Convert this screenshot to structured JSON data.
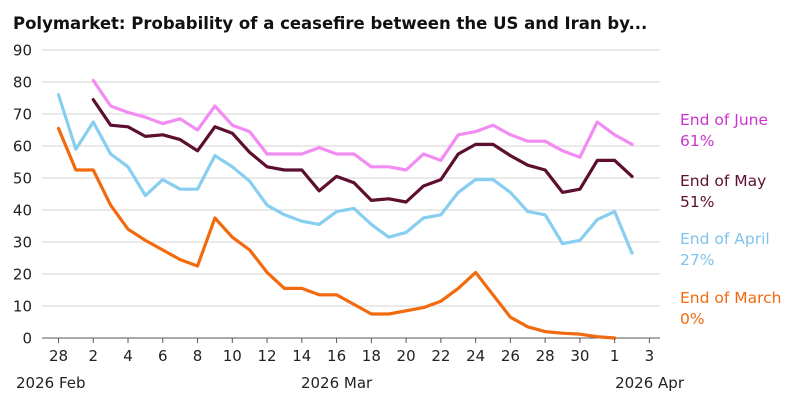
{
  "chart_data": {
    "type": "line",
    "title": "Polymarket: Probability of a ceasefire between the US and Iran by...",
    "xlabel": "",
    "ylabel": "",
    "ylim": [
      0,
      90
    ],
    "y_ticks": [
      0,
      10,
      20,
      30,
      40,
      50,
      60,
      70,
      80,
      90
    ],
    "x_ticks": [
      {
        "date": "2026-02-28",
        "label": "28"
      },
      {
        "date": "2026-03-02",
        "label": "2"
      },
      {
        "date": "2026-03-04",
        "label": "4"
      },
      {
        "date": "2026-03-06",
        "label": "6"
      },
      {
        "date": "2026-03-08",
        "label": "8"
      },
      {
        "date": "2026-03-10",
        "label": "10"
      },
      {
        "date": "2026-03-12",
        "label": "12"
      },
      {
        "date": "2026-03-14",
        "label": "14"
      },
      {
        "date": "2026-03-16",
        "label": "16"
      },
      {
        "date": "2026-03-18",
        "label": "18"
      },
      {
        "date": "2026-03-20",
        "label": "20"
      },
      {
        "date": "2026-03-22",
        "label": "22"
      },
      {
        "date": "2026-03-24",
        "label": "24"
      },
      {
        "date": "2026-03-26",
        "label": "26"
      },
      {
        "date": "2026-03-28",
        "label": "28"
      },
      {
        "date": "2026-03-30",
        "label": "30"
      },
      {
        "date": "2026-04-01",
        "label": "1"
      },
      {
        "date": "2026-04-03",
        "label": "3"
      }
    ],
    "period_labels": [
      {
        "date": "2026-02-28",
        "label": "2026 Feb"
      },
      {
        "date": "2026-03-16",
        "label": "2026 Mar"
      },
      {
        "date": "2026-04-01",
        "label": "2026 Apr"
      }
    ],
    "grid": "horizontal",
    "legend_position": "right",
    "series": [
      {
        "name": "End of June",
        "end_label": "61%",
        "color": "#f28cf2",
        "label_color": "#cc33cc",
        "x": [
          "2026-03-02",
          "2026-03-03",
          "2026-03-04",
          "2026-03-05",
          "2026-03-06",
          "2026-03-07",
          "2026-03-08",
          "2026-03-09",
          "2026-03-10",
          "2026-03-11",
          "2026-03-12",
          "2026-03-13",
          "2026-03-14",
          "2026-03-15",
          "2026-03-16",
          "2026-03-17",
          "2026-03-18",
          "2026-03-19",
          "2026-03-20",
          "2026-03-21",
          "2026-03-22",
          "2026-03-23",
          "2026-03-24",
          "2026-03-25",
          "2026-03-26",
          "2026-03-27",
          "2026-03-28",
          "2026-03-29",
          "2026-03-30",
          "2026-03-31",
          "2026-04-01",
          "2026-04-02"
        ],
        "y": [
          80.5,
          72.5,
          70.5,
          69,
          67,
          68.5,
          65,
          72.5,
          66.5,
          64.5,
          57.5,
          57.5,
          57.5,
          59.5,
          57.5,
          57.5,
          53.5,
          53.5,
          52.5,
          57.5,
          55.5,
          63.5,
          64.5,
          66.5,
          63.5,
          61.5,
          61.5,
          58.5,
          56.5,
          67.5,
          63.5,
          60.5
        ]
      },
      {
        "name": "End of May",
        "end_label": "51%",
        "color": "#5c0f2e",
        "label_color": "#5c0f2e",
        "x": [
          "2026-03-02",
          "2026-03-03",
          "2026-03-04",
          "2026-03-05",
          "2026-03-06",
          "2026-03-07",
          "2026-03-08",
          "2026-03-09",
          "2026-03-10",
          "2026-03-11",
          "2026-03-12",
          "2026-03-13",
          "2026-03-14",
          "2026-03-15",
          "2026-03-16",
          "2026-03-17",
          "2026-03-18",
          "2026-03-19",
          "2026-03-20",
          "2026-03-21",
          "2026-03-22",
          "2026-03-23",
          "2026-03-24",
          "2026-03-25",
          "2026-03-26",
          "2026-03-27",
          "2026-03-28",
          "2026-03-29",
          "2026-03-30",
          "2026-03-31",
          "2026-04-01",
          "2026-04-02"
        ],
        "y": [
          74.5,
          66.5,
          66,
          63,
          63.5,
          62,
          58.5,
          66,
          64,
          58,
          53.5,
          52.5,
          52.5,
          46,
          50.5,
          48.5,
          43,
          43.5,
          42.5,
          47.5,
          49.5,
          57.5,
          60.5,
          60.5,
          57,
          54,
          52.5,
          45.5,
          46.5,
          55.5,
          55.5,
          50.5
        ]
      },
      {
        "name": "End of April",
        "end_label": "27%",
        "color": "#87cef0",
        "label_color": "#7ec4ec",
        "x": [
          "2026-02-28",
          "2026-03-01",
          "2026-03-02",
          "2026-03-03",
          "2026-03-04",
          "2026-03-05",
          "2026-03-06",
          "2026-03-07",
          "2026-03-08",
          "2026-03-09",
          "2026-03-10",
          "2026-03-11",
          "2026-03-12",
          "2026-03-13",
          "2026-03-14",
          "2026-03-15",
          "2026-03-16",
          "2026-03-17",
          "2026-03-18",
          "2026-03-19",
          "2026-03-20",
          "2026-03-21",
          "2026-03-22",
          "2026-03-23",
          "2026-03-24",
          "2026-03-25",
          "2026-03-26",
          "2026-03-27",
          "2026-03-28",
          "2026-03-29",
          "2026-03-30",
          "2026-03-31",
          "2026-04-01",
          "2026-04-02"
        ],
        "y": [
          76,
          59,
          67.5,
          57.5,
          53.5,
          44.5,
          49.5,
          46.5,
          46.5,
          57,
          53.5,
          49,
          41.5,
          38.5,
          36.5,
          35.5,
          39.5,
          40.5,
          35.5,
          31.5,
          33,
          37.5,
          38.5,
          45.5,
          49.5,
          49.5,
          45.5,
          39.5,
          38.5,
          29.5,
          30.5,
          37,
          39.5,
          26.5
        ]
      },
      {
        "name": "End of March",
        "end_label": "0%",
        "color": "#f26a0f",
        "label_color": "#f26a0f",
        "x": [
          "2026-02-28",
          "2026-03-01",
          "2026-03-02",
          "2026-03-03",
          "2026-03-04",
          "2026-03-05",
          "2026-03-06",
          "2026-03-07",
          "2026-03-08",
          "2026-03-09",
          "2026-03-10",
          "2026-03-11",
          "2026-03-12",
          "2026-03-13",
          "2026-03-14",
          "2026-03-15",
          "2026-03-16",
          "2026-03-17",
          "2026-03-18",
          "2026-03-19",
          "2026-03-20",
          "2026-03-21",
          "2026-03-22",
          "2026-03-23",
          "2026-03-24",
          "2026-03-25",
          "2026-03-26",
          "2026-03-27",
          "2026-03-28",
          "2026-03-29",
          "2026-03-30",
          "2026-03-31",
          "2026-04-01"
        ],
        "y": [
          65.5,
          52.5,
          52.5,
          41.5,
          34,
          30.5,
          27.5,
          24.5,
          22.5,
          37.5,
          31.5,
          27.5,
          20.5,
          15.5,
          15.5,
          13.5,
          13.5,
          10.5,
          7.5,
          7.5,
          8.5,
          9.5,
          11.5,
          15.5,
          20.5,
          13.5,
          6.5,
          3.5,
          2,
          1.5,
          1.2,
          0.4,
          0
        ]
      }
    ]
  }
}
